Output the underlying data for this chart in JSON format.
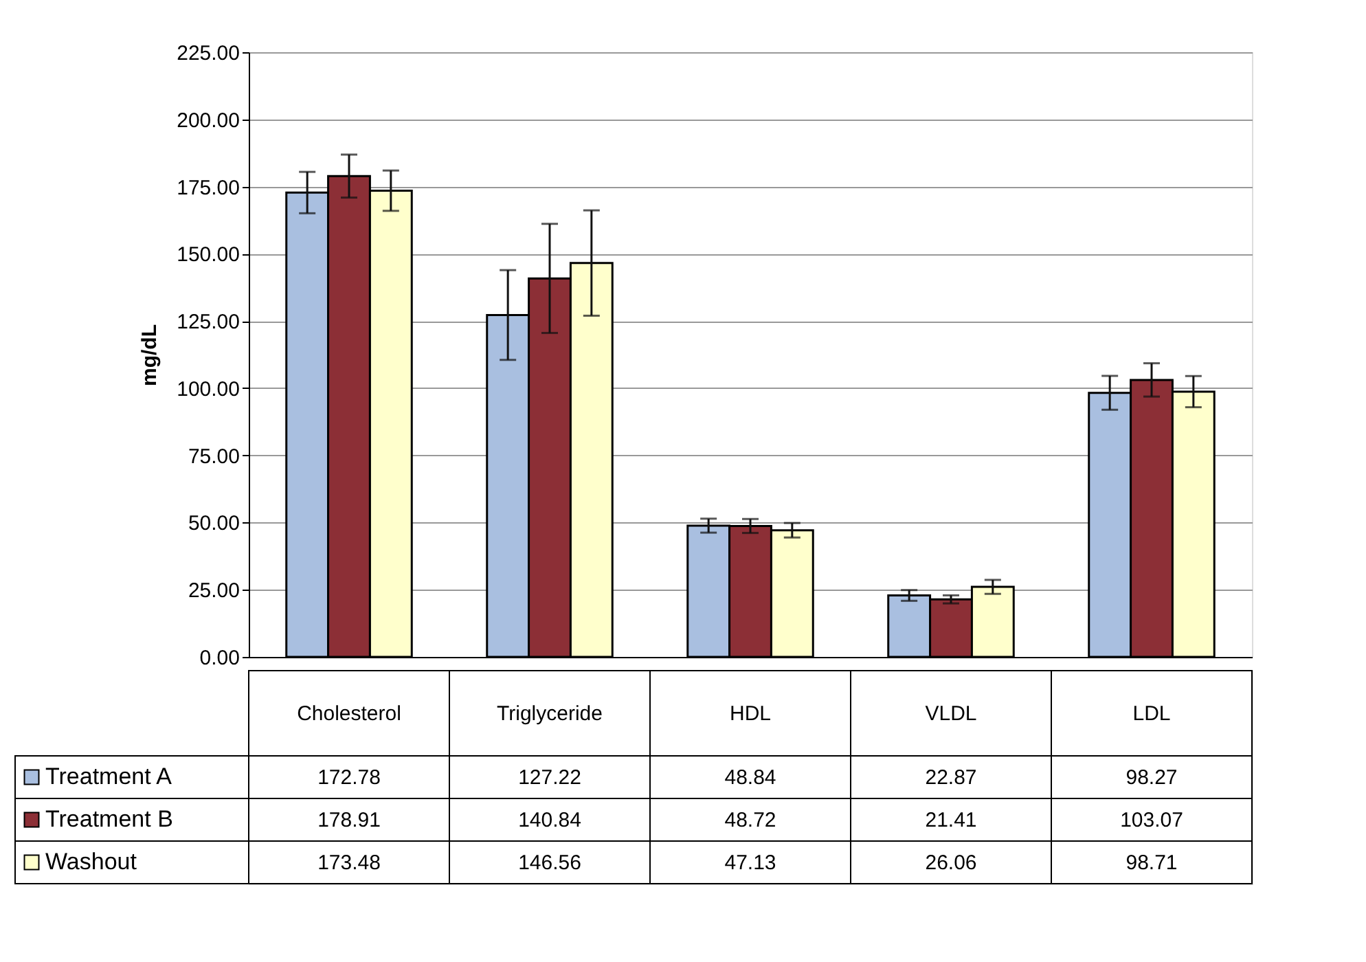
{
  "chart_data": {
    "type": "bar",
    "ylabel": "mg/dL",
    "categories": [
      "Cholesterol",
      "Triglyceride",
      "HDL",
      "VLDL",
      "LDL"
    ],
    "series": [
      {
        "name": "Treatment A",
        "color": "#a9bfe0",
        "values": [
          172.78,
          127.22,
          48.84,
          22.87,
          98.27
        ],
        "errors": [
          7.7,
          16.7,
          2.6,
          2.0,
          6.3
        ]
      },
      {
        "name": "Treatment B",
        "color": "#8c2f36",
        "values": [
          178.91,
          140.84,
          48.72,
          21.41,
          103.07
        ],
        "errors": [
          8.0,
          20.3,
          2.6,
          1.5,
          6.2
        ]
      },
      {
        "name": "Washout",
        "color": "#ffffcc",
        "values": [
          173.48,
          146.56,
          47.13,
          26.06,
          98.71
        ],
        "errors": [
          7.5,
          19.6,
          2.7,
          2.6,
          5.8
        ]
      }
    ],
    "ylim": [
      0,
      225
    ],
    "yticks": [
      {
        "value": 0,
        "label": "0.00"
      },
      {
        "value": 25,
        "label": "25.00"
      },
      {
        "value": 50,
        "label": "50.00"
      },
      {
        "value": 75,
        "label": "75.00"
      },
      {
        "value": 100,
        "label": "100.00"
      },
      {
        "value": 125,
        "label": "125.00"
      },
      {
        "value": 150,
        "label": "150.00"
      },
      {
        "value": 175,
        "label": "175.00"
      },
      {
        "value": 200,
        "label": "200.00"
      },
      {
        "value": 225,
        "label": "225.00"
      }
    ],
    "grid": "y",
    "legend": "bottom",
    "data_labels": true
  }
}
